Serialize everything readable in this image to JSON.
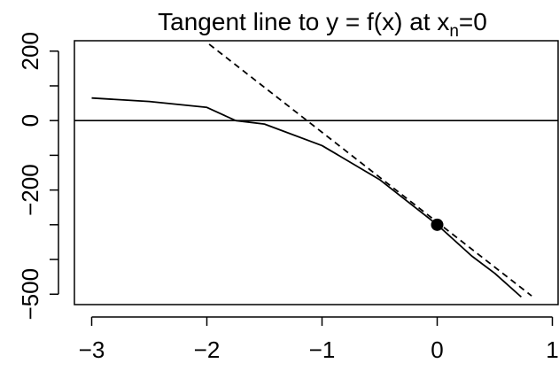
{
  "title": {
    "text": "Tangent line to y = f(x) at x",
    "subscript": "n",
    "suffix": "=0"
  },
  "chart_data": {
    "type": "line",
    "title": "Tangent line to y = f(x) at xₙ=0",
    "xlabel": "",
    "ylabel": "",
    "xlim": [
      -3.15,
      1.05
    ],
    "ylim": [
      -530,
      230
    ],
    "x_ticks": [
      -3,
      -2,
      -1,
      0,
      1
    ],
    "x_tick_labels": [
      "−3",
      "−2",
      "−1",
      "0",
      "1"
    ],
    "y_ticks": [
      200,
      100,
      0,
      -100,
      -200,
      -300,
      -400,
      -500
    ],
    "y_tick_labels": [
      "200",
      "",
      "0",
      "",
      "−200",
      "",
      "",
      "−500"
    ],
    "grid": false,
    "series": [
      {
        "style": "solid",
        "color": "#000000",
        "points": [
          [
            -3.0,
            65
          ],
          [
            -2.5,
            55
          ],
          [
            -2.0,
            38
          ],
          [
            -1.75,
            0
          ],
          [
            -1.5,
            -10
          ],
          [
            -1.0,
            -72
          ],
          [
            -0.5,
            -170
          ],
          [
            0.0,
            -300
          ],
          [
            0.3,
            -390
          ],
          [
            0.5,
            -440
          ],
          [
            0.73,
            -508
          ]
        ]
      },
      {
        "style": "dashed",
        "color": "#000000",
        "points": [
          [
            -1.98,
            220
          ],
          [
            0.82,
            -505
          ]
        ]
      }
    ],
    "reference_lines": [
      {
        "orientation": "horizontal",
        "y": 0,
        "style": "solid",
        "color": "#000000"
      }
    ],
    "marked_point": {
      "x": 0,
      "y": -300,
      "color": "#000000"
    }
  }
}
